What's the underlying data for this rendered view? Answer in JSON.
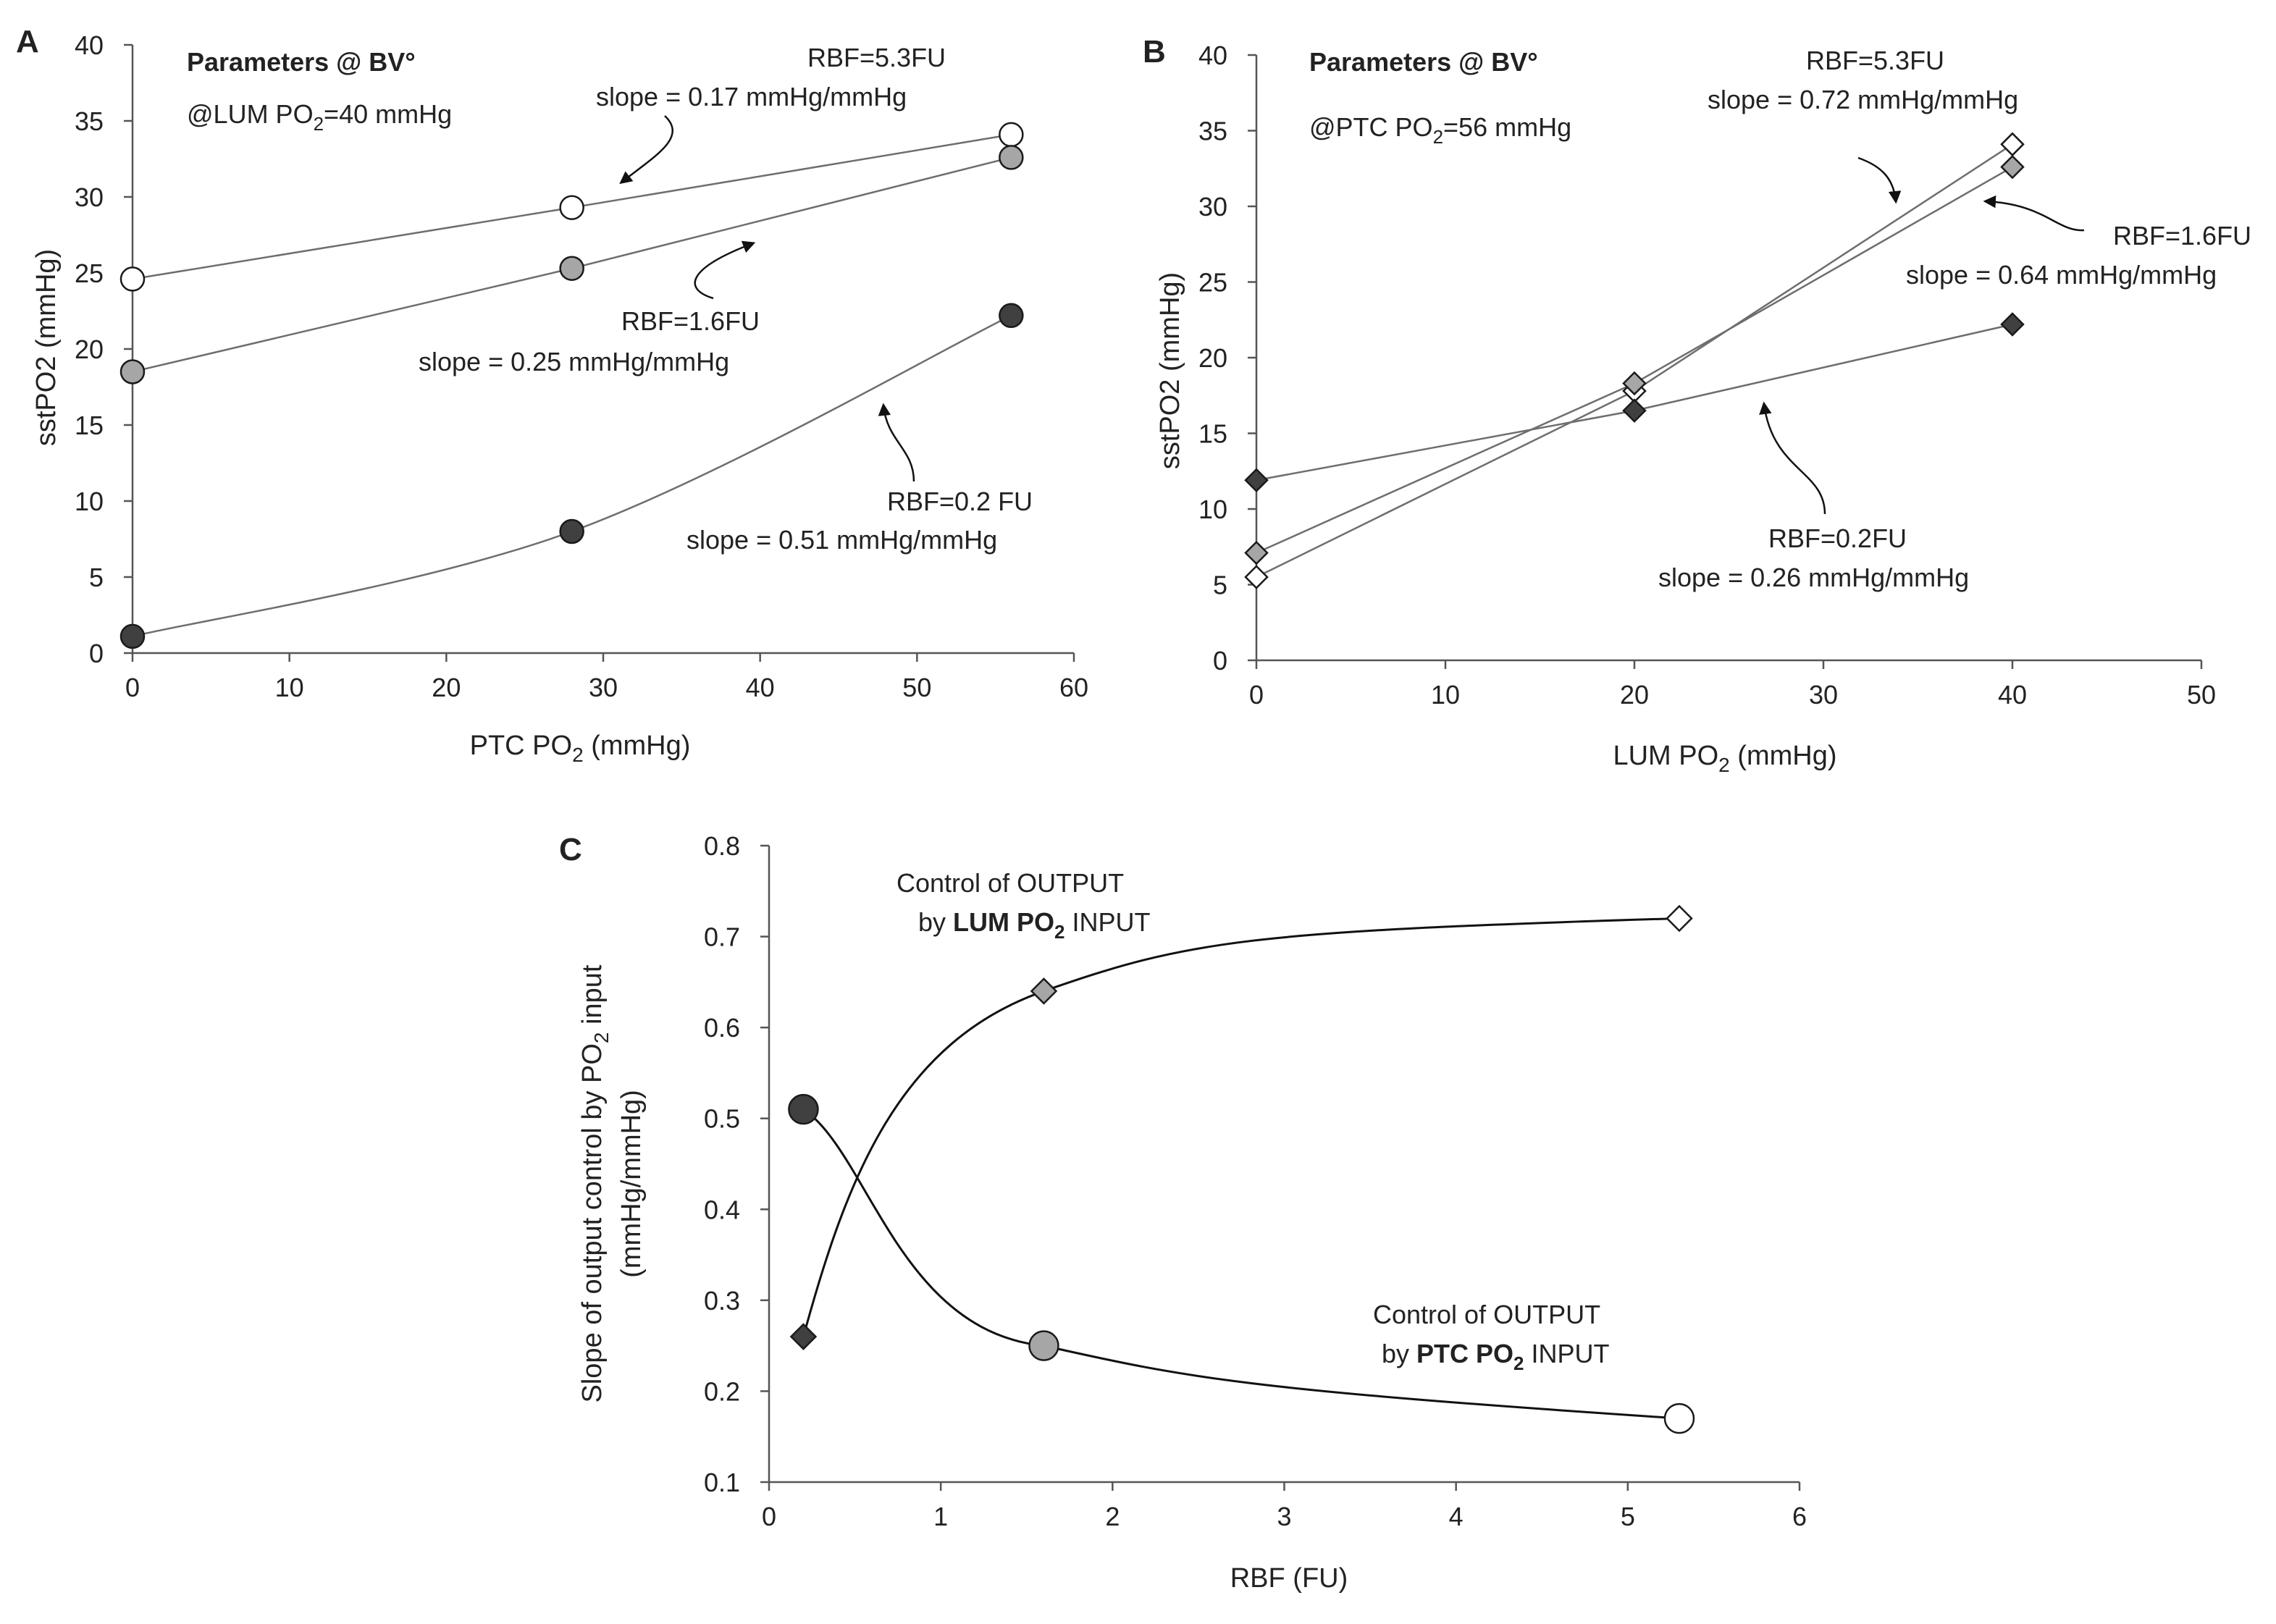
{
  "panels": {
    "A": {
      "letter": "A",
      "title": "Parameters @ BV°",
      "condition_main": "@LUM PO",
      "condition_sub": "2",
      "condition_rest": "=40 mmHg",
      "annotations": [
        {
          "line1": "RBF=5.3FU",
          "line2": "slope = 0.17 mmHg/mmHg"
        },
        {
          "line1": "RBF=1.6FU",
          "line2": "slope = 0.25 mmHg/mmHg"
        },
        {
          "line1": "RBF=0.2 FU",
          "line2": "slope = 0.51 mmHg/mmHg"
        }
      ]
    },
    "B": {
      "letter": "B",
      "title": "Parameters @ BV°",
      "condition_main": "@PTC PO",
      "condition_sub": "2",
      "condition_rest": "=56 mmHg",
      "annotations": [
        {
          "line1": "RBF=5.3FU",
          "line2": "slope = 0.72 mmHg/mmHg"
        },
        {
          "line1": "RBF=1.6FU",
          "line2": "slope = 0.64 mmHg/mmHg"
        },
        {
          "line1": "RBF=0.2FU",
          "line2": "slope = 0.26 mmHg/mmHg"
        }
      ]
    },
    "C": {
      "letter": "C",
      "lum_label": {
        "line1": "Control of OUTPUT",
        "line2_pre": "by ",
        "line2_bold": "LUM PO",
        "sub": "2",
        "line2_post": " INPUT"
      },
      "ptc_label": {
        "line1": "Control of  OUTPUT",
        "line2_pre": "by ",
        "line2_bold": "PTC PO",
        "sub": "2",
        "line2_post": " INPUT"
      }
    }
  },
  "colors": {
    "white": "#ffffff",
    "light": "#a6a6a6",
    "dark": "#404040",
    "line": "#6e6e6e",
    "axis": "#555555",
    "curve": "#111111"
  },
  "chart_data": [
    {
      "id": "A",
      "type": "line",
      "ylabel": "sstPO2  (mmHg)",
      "xlabel_main": "PTC PO",
      "xlabel_sub": "2",
      "xlabel_rest": " (mmHg)",
      "xlim": [
        0,
        60
      ],
      "ylim": [
        0,
        40
      ],
      "xticks": [
        0,
        10,
        20,
        30,
        40,
        50,
        60
      ],
      "yticks": [
        0,
        5,
        10,
        15,
        20,
        25,
        30,
        35,
        40
      ],
      "marker": "circle",
      "series": [
        {
          "name": "RBF=5.3FU",
          "fill": "white",
          "smooth": false,
          "x": [
            0,
            28,
            56
          ],
          "y": [
            24.6,
            29.3,
            34.1
          ]
        },
        {
          "name": "RBF=1.6FU",
          "fill": "light",
          "smooth": false,
          "x": [
            0,
            28,
            56
          ],
          "y": [
            18.5,
            25.3,
            32.6
          ]
        },
        {
          "name": "RBF=0.2 FU",
          "fill": "dark",
          "smooth": true,
          "x": [
            0,
            28,
            56
          ],
          "y": [
            1.1,
            8.0,
            22.2
          ]
        }
      ]
    },
    {
      "id": "B",
      "type": "line",
      "ylabel": "sstPO2  (mmHg)",
      "xlabel_main": "LUM PO",
      "xlabel_sub": "2",
      "xlabel_rest": " (mmHg)",
      "xlim": [
        0,
        50
      ],
      "ylim": [
        0,
        40
      ],
      "xticks": [
        0,
        10,
        20,
        30,
        40,
        50
      ],
      "yticks": [
        0,
        5,
        10,
        15,
        20,
        25,
        30,
        35,
        40
      ],
      "marker": "diamond",
      "series": [
        {
          "name": "RBF=5.3FU",
          "fill": "white",
          "smooth": false,
          "x": [
            0,
            20,
            40
          ],
          "y": [
            5.5,
            17.8,
            34.1
          ]
        },
        {
          "name": "RBF=1.6FU",
          "fill": "light",
          "smooth": false,
          "x": [
            0,
            20,
            40
          ],
          "y": [
            7.1,
            18.3,
            32.6
          ]
        },
        {
          "name": "RBF=0.2FU",
          "fill": "dark",
          "smooth": false,
          "x": [
            0,
            20,
            40
          ],
          "y": [
            11.9,
            16.5,
            22.2
          ]
        }
      ]
    },
    {
      "id": "C",
      "type": "scatter",
      "ylabel_line1": "Slope of output control by PO",
      "ylabel_sub": "2",
      "ylabel_rest": " input",
      "ylabel_line2": "(mmHg/mmHg)",
      "xlabel": "RBF (FU)",
      "xlim": [
        0,
        6
      ],
      "ylim": [
        0.1,
        0.8
      ],
      "xticks": [
        0,
        1,
        2,
        3,
        4,
        5,
        6
      ],
      "yticks": [
        0.1,
        0.2,
        0.3,
        0.4,
        0.5,
        0.6,
        0.7,
        0.8
      ],
      "series": [
        {
          "name": "Control of OUTPUT by LUM PO2 INPUT",
          "marker": "diamond",
          "smooth": true,
          "x": [
            0.2,
            1.6,
            5.3
          ],
          "y": [
            0.26,
            0.64,
            0.72
          ],
          "fills": [
            "dark",
            "light",
            "white"
          ]
        },
        {
          "name": "Control of OUTPUT by PTC PO2 INPUT",
          "marker": "circle",
          "smooth": true,
          "x": [
            0.2,
            1.6,
            5.3
          ],
          "y": [
            0.51,
            0.25,
            0.17
          ],
          "fills": [
            "dark",
            "light",
            "white"
          ]
        }
      ]
    }
  ]
}
